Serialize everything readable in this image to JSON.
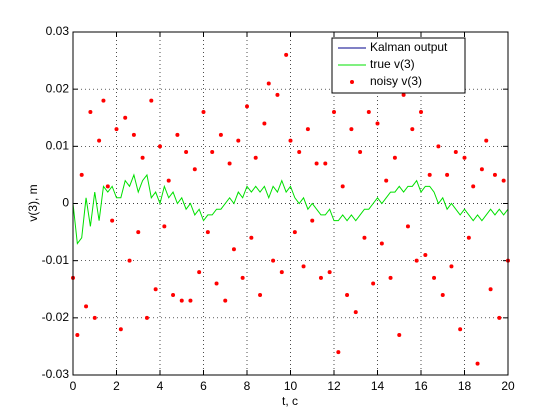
{
  "chart_data": {
    "type": "line",
    "xlabel": "t, c",
    "ylabel": "v(3), m",
    "x": [
      0,
      0.2,
      0.4,
      0.6,
      0.8,
      1,
      1.2,
      1.4,
      1.6,
      1.8,
      2,
      2.2,
      2.4,
      2.6,
      2.8,
      3,
      3.2,
      3.4,
      3.6,
      3.8,
      4,
      4.2,
      4.4,
      4.6,
      4.8,
      5,
      5.2,
      5.4,
      5.6,
      5.8,
      6,
      6.2,
      6.4,
      6.6,
      6.8,
      7,
      7.2,
      7.4,
      7.6,
      7.8,
      8,
      8.2,
      8.4,
      8.6,
      8.8,
      9,
      9.2,
      9.4,
      9.6,
      9.8,
      10,
      10.2,
      10.4,
      10.6,
      10.8,
      11,
      11.2,
      11.4,
      11.6,
      11.8,
      12,
      12.2,
      12.4,
      12.6,
      12.8,
      13,
      13.2,
      13.4,
      13.6,
      13.8,
      14,
      14.2,
      14.4,
      14.6,
      14.8,
      15,
      15.2,
      15.4,
      15.6,
      15.8,
      16,
      16.2,
      16.4,
      16.6,
      16.8,
      17,
      17.2,
      17.4,
      17.6,
      17.8,
      18,
      18.2,
      18.4,
      18.6,
      18.8,
      19,
      19.2,
      19.4,
      19.6,
      19.8,
      20
    ],
    "series": [
      {
        "name": "Kalman output",
        "color": "#00008b",
        "mode": "line",
        "values": [
          null,
          null,
          null,
          null,
          null,
          null,
          null,
          null,
          null,
          null,
          null,
          null,
          null,
          null,
          null,
          null,
          null,
          null,
          null,
          null,
          null,
          null,
          null,
          null,
          null,
          null,
          null,
          null,
          null,
          null,
          null,
          null,
          null,
          null,
          null,
          null,
          null,
          null,
          null,
          null,
          null,
          null,
          null,
          null,
          null,
          null,
          null,
          null,
          null,
          null,
          null,
          null,
          null,
          null,
          null,
          null,
          null,
          null,
          null,
          null,
          null,
          null,
          null,
          null,
          null,
          null,
          null,
          null,
          null,
          null,
          null,
          null,
          null,
          null,
          null,
          null,
          null,
          null,
          null,
          null,
          null,
          null,
          null,
          null,
          null,
          null,
          null,
          null,
          null,
          null,
          null,
          null,
          null,
          null,
          null,
          null,
          null,
          null,
          null,
          null,
          null
        ]
      },
      {
        "name": "true v(3)",
        "color": "#00e000",
        "mode": "line",
        "values": [
          0,
          -0.007,
          -0.006,
          0.001,
          -0.004,
          0.002,
          -0.003,
          0.003,
          0.002,
          0.003,
          0.001,
          0.001,
          0.004,
          0.003,
          0.005,
          0.002,
          0.004,
          0.005,
          0.001,
          0.002,
          0,
          0.003,
          0.001,
          0.002,
          0,
          0.001,
          -0.001,
          0,
          -0.002,
          -0.001,
          -0.003,
          -0.002,
          -0.002,
          -0.001,
          -0.001,
          0,
          0.001,
          0,
          0.002,
          0.001,
          0.003,
          0.002,
          0.003,
          0.002,
          0.003,
          0.001,
          0.003,
          0.002,
          0.004,
          0.002,
          0.003,
          0.001,
          0,
          0.001,
          -0.001,
          0,
          -0.001,
          -0.002,
          -0.002,
          -0.001,
          -0.003,
          -0.003,
          -0.002,
          -0.003,
          -0.002,
          -0.003,
          -0.002,
          -0.001,
          -0.001,
          0,
          0.001,
          0,
          0.001,
          0.002,
          0.002,
          0.003,
          0.002,
          0.003,
          0.003,
          0.004,
          0.002,
          0.003,
          0.003,
          0.002,
          0,
          0.001,
          -0.001,
          0,
          -0.001,
          -0.002,
          -0.001,
          -0.002,
          -0.003,
          -0.002,
          -0.003,
          -0.002,
          -0.001,
          -0.002,
          -0.001,
          -0.002,
          -0.001
        ]
      },
      {
        "name": "noisy v(3)",
        "color": "#ff0000",
        "mode": "markers",
        "values": [
          -0.013,
          -0.023,
          0.005,
          -0.018,
          0.016,
          -0.02,
          0.011,
          0.018,
          0.003,
          -0.003,
          0.013,
          -0.022,
          0.015,
          -0.01,
          0.012,
          -0.005,
          0.008,
          -0.02,
          0.018,
          -0.015,
          0.01,
          -0.004,
          0.004,
          -0.016,
          0.012,
          -0.017,
          0.009,
          -0.017,
          0.006,
          -0.012,
          0.016,
          -0.005,
          0.009,
          -0.014,
          0.012,
          -0.017,
          0.007,
          -0.008,
          0.011,
          -0.013,
          0.017,
          -0.006,
          0.008,
          -0.016,
          0.014,
          0.021,
          -0.01,
          0.019,
          -0.012,
          0.026,
          0.011,
          -0.005,
          0.009,
          -0.011,
          0.013,
          -0.003,
          0.007,
          -0.013,
          0.007,
          -0.012,
          0.016,
          -0.026,
          0.003,
          -0.016,
          0.013,
          -0.019,
          0.009,
          -0.006,
          0.016,
          -0.014,
          0.014,
          -0.007,
          0.004,
          -0.013,
          0.008,
          -0.023,
          0.019,
          -0.004,
          0.013,
          -0.01,
          0.016,
          -0.009,
          0.005,
          -0.013,
          0.01,
          -0.016,
          0.005,
          -0.011,
          0.009,
          -0.022,
          0.008,
          -0.006,
          0.003,
          -0.028,
          0.006,
          0.011,
          -0.015,
          0.005,
          -0.02,
          0.004,
          -0.01
        ]
      }
    ],
    "xlim": [
      0,
      20
    ],
    "xticks": [
      0,
      2,
      4,
      6,
      8,
      10,
      12,
      14,
      16,
      18,
      20
    ],
    "ylim": [
      -0.03,
      0.03
    ],
    "yticks": [
      -0.03,
      -0.02,
      -0.01,
      0,
      0.01,
      0.02,
      0.03
    ],
    "grid": true,
    "legend": "upper right"
  }
}
